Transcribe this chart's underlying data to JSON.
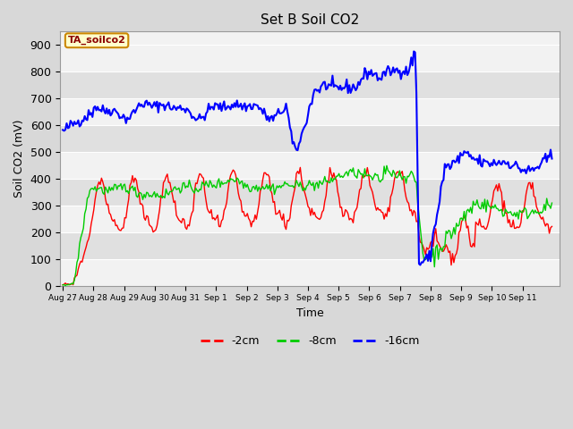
{
  "title": "Set B Soil CO2",
  "xlabel": "Time",
  "ylabel": "Soil CO2 (mV)",
  "ylim": [
    0,
    950
  ],
  "yticks": [
    0,
    100,
    200,
    300,
    400,
    500,
    600,
    700,
    800,
    900
  ],
  "x_tick_labels": [
    "Aug 27",
    "Aug 28",
    "Aug 29",
    "Aug 30",
    "Aug 31",
    "Sep 1",
    "Sep 2",
    "Sep 3",
    "Sep 4",
    "Sep 5",
    "Sep 6",
    "Sep 7",
    "Sep 8",
    "Sep 9",
    "Sep 10",
    "Sep 11"
  ],
  "label_2cm": "-2cm",
  "label_8cm": "-8cm",
  "label_16cm": "-16cm",
  "color_2cm": "#ff0000",
  "color_8cm": "#00cc00",
  "color_16cm": "#0000ff",
  "fig_bg": "#d8d8d8",
  "band_light": "#f2f2f2",
  "band_dark": "#e0e0e0",
  "annotation_text": "TA_soilco2",
  "annotation_bg": "#ffffcc",
  "annotation_border": "#cc8800"
}
